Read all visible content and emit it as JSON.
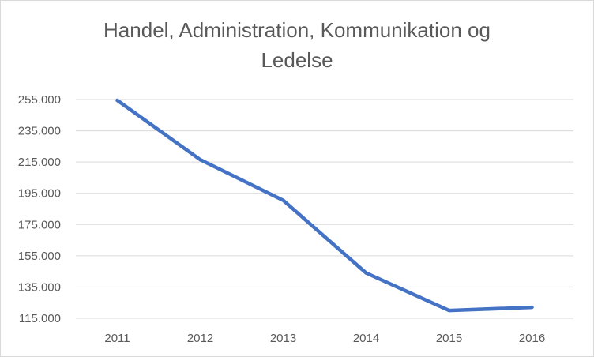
{
  "chart_data": {
    "type": "line",
    "title": [
      "Handel, Administration, Kommunikation og",
      "Ledelse"
    ],
    "categories": [
      "2011",
      "2012",
      "2013",
      "2014",
      "2015",
      "2016"
    ],
    "y_tick_labels": [
      "115.000",
      "135.000",
      "155.000",
      "175.000",
      "195.000",
      "215.000",
      "235.000",
      "255.000"
    ],
    "y_ticks": [
      115000,
      135000,
      155000,
      175000,
      195000,
      215000,
      235000,
      255000
    ],
    "ylim": [
      115000,
      255000
    ],
    "series": [
      {
        "values": [
          254500,
          216500,
          190500,
          144000,
          120000,
          122000
        ]
      }
    ],
    "grid": true,
    "colors": {
      "line": "#4472c4",
      "grid": "#d9d9d9",
      "text": "#595959"
    }
  }
}
